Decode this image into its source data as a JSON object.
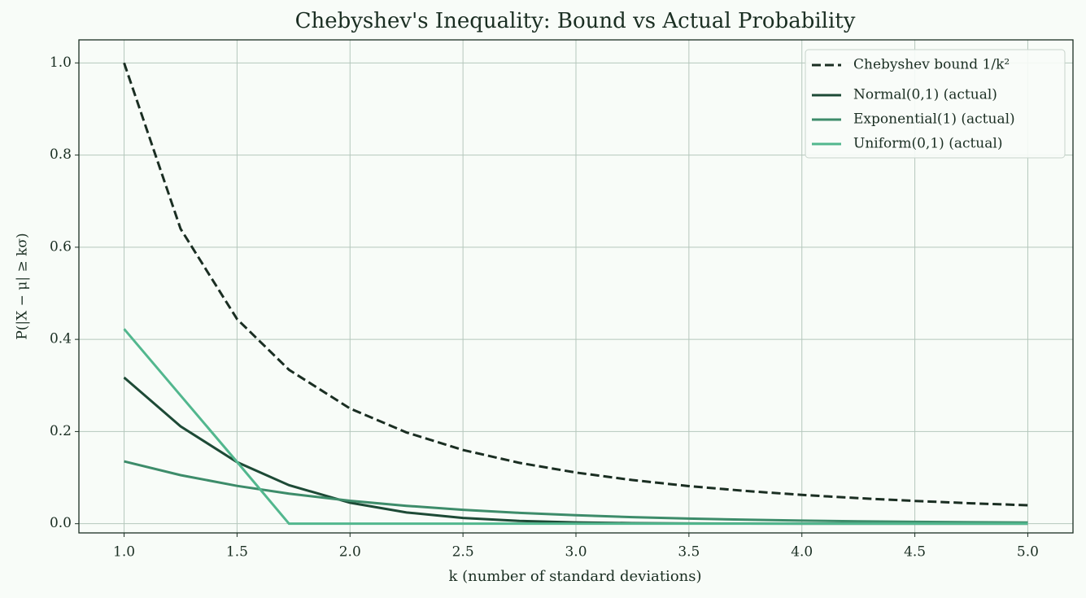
{
  "chart_data": {
    "type": "line",
    "title": "Chebyshev's Inequality: Bound vs Actual Probability",
    "x_label": "k (number of standard deviations)",
    "y_label": "P(|X − μ| ≥ kσ)",
    "x": [
      1,
      1.25,
      1.5,
      1.73,
      2,
      2.25,
      2.5,
      2.75,
      3,
      3.25,
      3.5,
      3.75,
      4,
      4.25,
      4.5,
      4.75,
      5
    ],
    "series": [
      {
        "name": "Chebyshev bound 1/k²",
        "color": "#1a2e22",
        "dashed": true,
        "values": [
          1,
          0.64,
          0.444,
          0.334,
          0.25,
          0.198,
          0.16,
          0.132,
          0.111,
          0.0947,
          0.0816,
          0.0711,
          0.0625,
          0.0554,
          0.0494,
          0.0443,
          0.04
        ]
      },
      {
        "name": "Normal(0,1) (actual)",
        "color": "#1d4a36",
        "dashed": false,
        "values": [
          0.3173,
          0.2113,
          0.1336,
          0.0836,
          0.0455,
          0.0244,
          0.0124,
          0.006,
          0.0027,
          0.0012,
          0.0005,
          0.0002,
          0.0001,
          0,
          0,
          0,
          0
        ]
      },
      {
        "name": "Exponential(1) (actual)",
        "color": "#3d8c6a",
        "dashed": false,
        "values": [
          0.1353,
          0.1054,
          0.0821,
          0.0652,
          0.0498,
          0.0388,
          0.0302,
          0.0235,
          0.0183,
          0.0143,
          0.0111,
          0.0087,
          0.0067,
          0.0052,
          0.0041,
          0.0032,
          0.0025
        ]
      },
      {
        "name": "Uniform(0,1) (actual)",
        "color": "#52b78e",
        "dashed": false,
        "values": [
          0.4226,
          0.2783,
          0.134,
          0,
          0,
          0,
          0,
          0,
          0,
          0,
          0,
          0,
          0,
          0,
          0,
          0,
          0
        ]
      }
    ],
    "xlim": [
      0.8,
      5.2
    ],
    "ylim": [
      -0.02,
      1.05
    ],
    "xticks": [
      {
        "value": 1,
        "label": "1.0"
      },
      {
        "value": 1.5,
        "label": "1.5"
      },
      {
        "value": 2,
        "label": "2.0"
      },
      {
        "value": 2.5,
        "label": "2.5"
      },
      {
        "value": 3,
        "label": "3.0"
      },
      {
        "value": 3.5,
        "label": "3.5"
      },
      {
        "value": 4,
        "label": "4.0"
      },
      {
        "value": 4.5,
        "label": "4.5"
      },
      {
        "value": 5,
        "label": "5.0"
      }
    ],
    "yticks": [
      {
        "value": 0,
        "label": "0.0"
      },
      {
        "value": 0.2,
        "label": "0.2"
      },
      {
        "value": 0.4,
        "label": "0.4"
      },
      {
        "value": 0.6,
        "label": "0.6"
      },
      {
        "value": 0.8,
        "label": "0.8"
      },
      {
        "value": 1,
        "label": "1.0"
      }
    ],
    "grid": true,
    "legend": "upper right"
  }
}
